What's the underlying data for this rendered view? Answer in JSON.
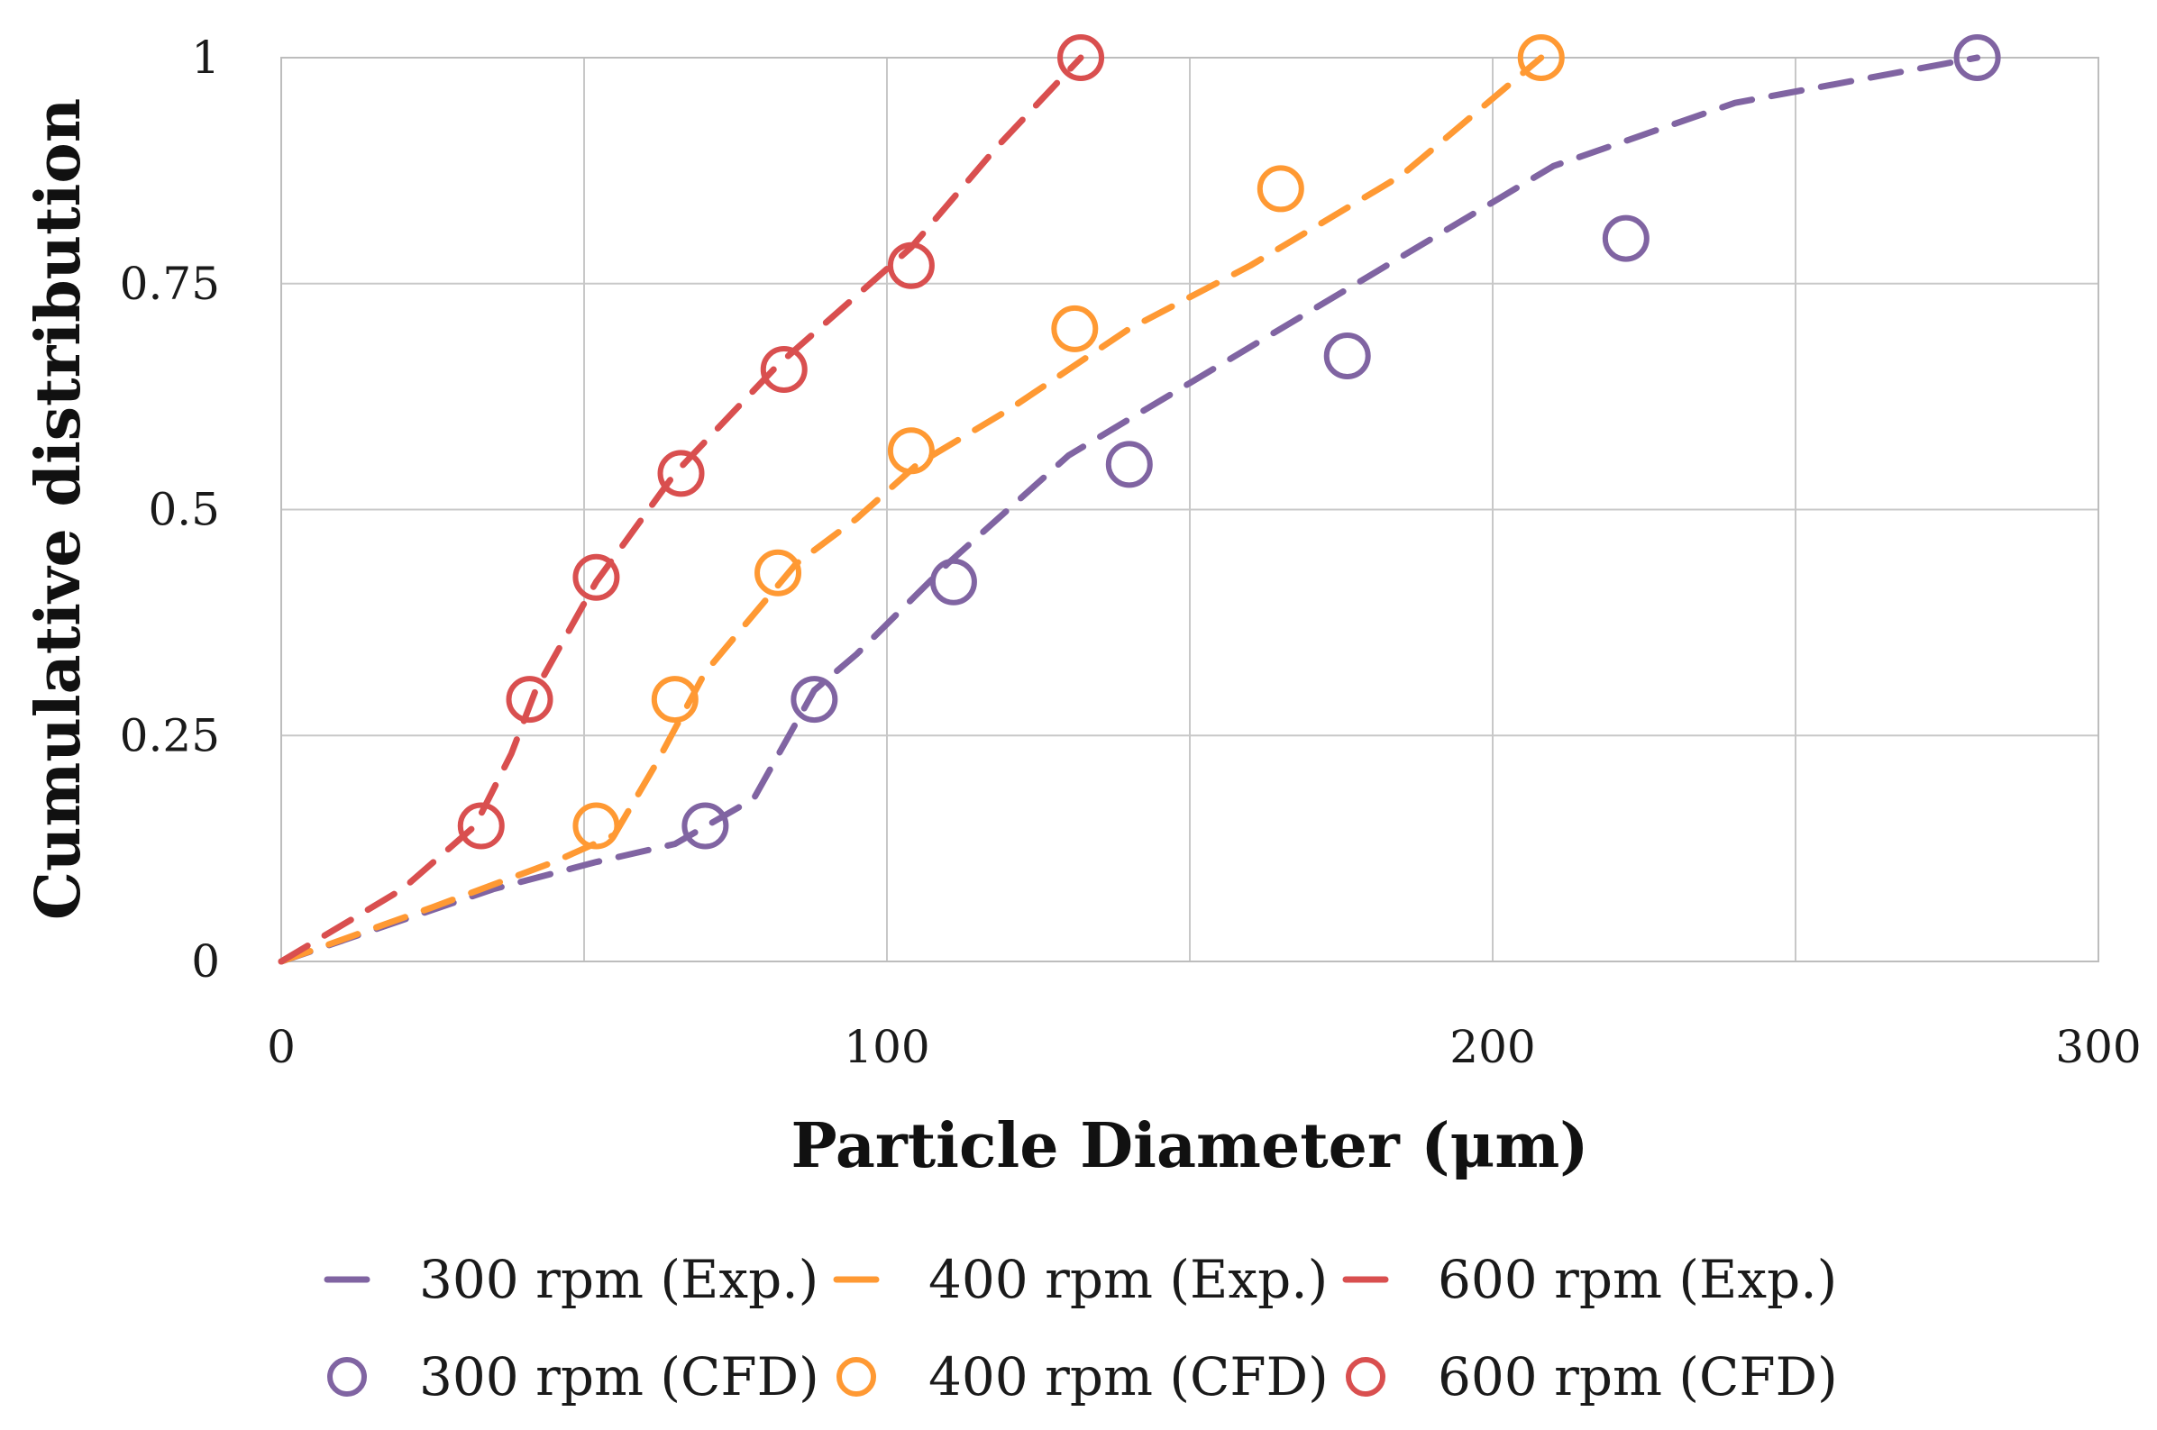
{
  "chart_data": {
    "type": "scatter",
    "title": "",
    "xlabel": "Particle Diameter (μm)",
    "ylabel": "Cumulative distribution",
    "xlim": [
      0,
      300
    ],
    "ylim": [
      0,
      1
    ],
    "xticks": [
      0,
      100,
      200,
      300
    ],
    "yticks": [
      0,
      0.25,
      0.5,
      0.75,
      1
    ],
    "xtick_labels": [
      "0",
      "100",
      "200",
      "300"
    ],
    "ytick_labels": [
      "0",
      "0.25",
      "0.5",
      "0.75",
      "1"
    ],
    "grid": true,
    "legend_position": "bottom",
    "series": [
      {
        "name": "300 rpm (Exp.)",
        "kind": "dashed-line",
        "color": "#8064A2",
        "x": [
          0,
          35,
          52,
          65,
          78,
          88,
          95,
          110,
          130,
          150,
          180,
          210,
          240,
          280
        ],
        "y": [
          0,
          0.08,
          0.11,
          0.13,
          0.18,
          0.3,
          0.34,
          0.44,
          0.56,
          0.64,
          0.76,
          0.88,
          0.95,
          1.0
        ]
      },
      {
        "name": "400 rpm (Exp.)",
        "kind": "dashed-line",
        "color": "#FF9933",
        "x": [
          0,
          25,
          45,
          55,
          62,
          70,
          85,
          95,
          105,
          120,
          140,
          160,
          185,
          208
        ],
        "y": [
          0,
          0.06,
          0.11,
          0.14,
          0.22,
          0.32,
          0.44,
          0.49,
          0.55,
          0.61,
          0.7,
          0.77,
          0.87,
          1.0
        ]
      },
      {
        "name": "600 rpm (Exp.)",
        "kind": "dashed-line",
        "color": "#D94F4F",
        "x": [
          0,
          20,
          32,
          38,
          42,
          52,
          65,
          82,
          104,
          118,
          132
        ],
        "y": [
          0,
          0.08,
          0.15,
          0.23,
          0.3,
          0.42,
          0.54,
          0.66,
          0.79,
          0.9,
          1.0
        ]
      },
      {
        "name": "300 rpm (CFD)",
        "kind": "markers",
        "color": "#8064A2",
        "x": [
          70,
          88,
          111,
          140,
          176,
          222,
          280
        ],
        "y": [
          0.15,
          0.29,
          0.42,
          0.55,
          0.67,
          0.8,
          1.0
        ]
      },
      {
        "name": "400 rpm (CFD)",
        "kind": "markers",
        "color": "#FF9933",
        "x": [
          52,
          65,
          82,
          104,
          131,
          165,
          208
        ],
        "y": [
          0.15,
          0.29,
          0.43,
          0.565,
          0.7,
          0.855,
          1.0
        ]
      },
      {
        "name": "600 rpm (CFD)",
        "kind": "markers",
        "color": "#D94F4F",
        "x": [
          33,
          41,
          52,
          66,
          83,
          104,
          132
        ],
        "y": [
          0.15,
          0.29,
          0.425,
          0.54,
          0.655,
          0.77,
          1.0
        ]
      }
    ]
  }
}
